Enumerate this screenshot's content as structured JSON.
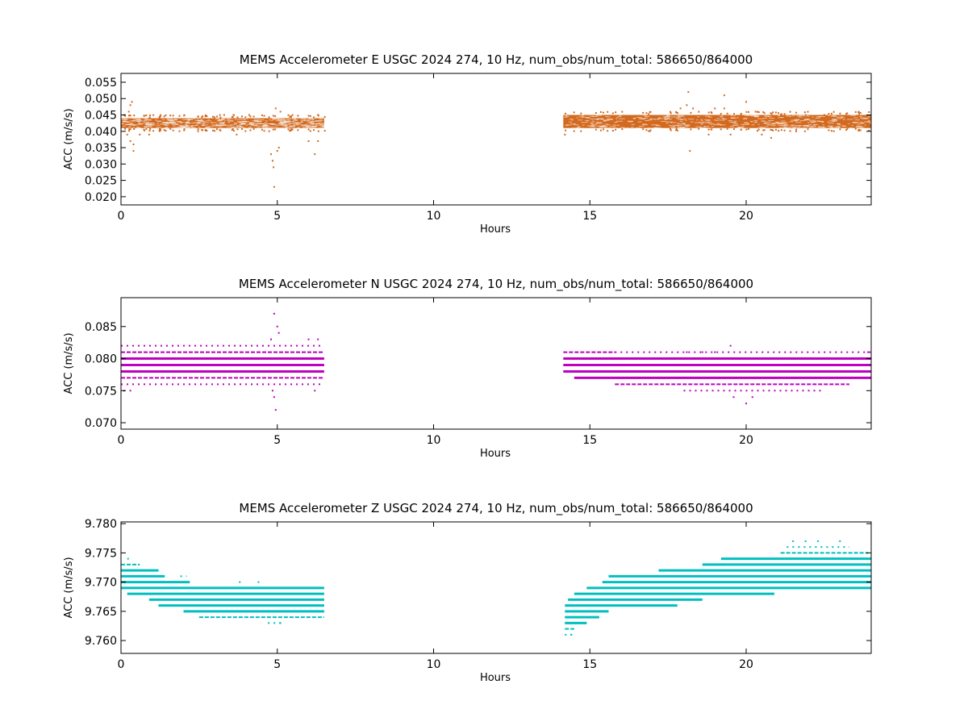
{
  "figure": {
    "background": "#ffffff"
  },
  "chart_data": [
    {
      "type": "scatter",
      "title": "MEMS Accelerometer E USGC 2024 274, 10 Hz, num_obs/num_total: 586650/864000",
      "xlabel": "Hours",
      "ylabel": "ACC (m/s/s)",
      "xlim": [
        0,
        24
      ],
      "ylim": [
        0.0175,
        0.0577
      ],
      "xticks": [
        0,
        5,
        10,
        15,
        20
      ],
      "xtick_labels": [
        "0",
        "5",
        "10",
        "15",
        "20"
      ],
      "yticks": [
        0.02,
        0.025,
        0.03,
        0.035,
        0.04,
        0.045,
        0.05,
        0.055
      ],
      "ytick_labels": [
        "0.020",
        "0.025",
        "0.030",
        "0.035",
        "0.040",
        "0.045",
        "0.050",
        "0.055"
      ],
      "grid": false,
      "color": "#d2691e",
      "segments": [
        {
          "x_start": 0.0,
          "x_end": 6.5,
          "y_low": 0.041,
          "y_high": 0.044
        },
        {
          "x_start": 14.15,
          "x_end": 24.0,
          "y_low": 0.041,
          "y_high": 0.045
        }
      ],
      "outliers": [
        {
          "x": 0.1,
          "y": 0.045
        },
        {
          "x": 0.25,
          "y": 0.046
        },
        {
          "x": 0.3,
          "y": 0.048
        },
        {
          "x": 0.35,
          "y": 0.049
        },
        {
          "x": 0.3,
          "y": 0.037
        },
        {
          "x": 0.4,
          "y": 0.036
        },
        {
          "x": 0.4,
          "y": 0.034
        },
        {
          "x": 0.2,
          "y": 0.039
        },
        {
          "x": 0.6,
          "y": 0.039
        },
        {
          "x": 0.9,
          "y": 0.039
        },
        {
          "x": 3.3,
          "y": 0.045
        },
        {
          "x": 3.6,
          "y": 0.045
        },
        {
          "x": 3.7,
          "y": 0.039
        },
        {
          "x": 4.1,
          "y": 0.045
        },
        {
          "x": 4.8,
          "y": 0.033
        },
        {
          "x": 4.85,
          "y": 0.031
        },
        {
          "x": 4.88,
          "y": 0.029
        },
        {
          "x": 4.9,
          "y": 0.023
        },
        {
          "x": 4.95,
          "y": 0.047
        },
        {
          "x": 5.0,
          "y": 0.034
        },
        {
          "x": 5.05,
          "y": 0.035
        },
        {
          "x": 5.1,
          "y": 0.046
        },
        {
          "x": 6.2,
          "y": 0.033
        },
        {
          "x": 6.0,
          "y": 0.037
        },
        {
          "x": 6.3,
          "y": 0.045
        },
        {
          "x": 6.3,
          "y": 0.037
        },
        {
          "x": 14.2,
          "y": 0.039
        },
        {
          "x": 17.9,
          "y": 0.047
        },
        {
          "x": 18.1,
          "y": 0.048
        },
        {
          "x": 18.15,
          "y": 0.052
        },
        {
          "x": 18.2,
          "y": 0.034
        },
        {
          "x": 18.3,
          "y": 0.047
        },
        {
          "x": 18.8,
          "y": 0.039
        },
        {
          "x": 19.0,
          "y": 0.047
        },
        {
          "x": 19.3,
          "y": 0.051
        },
        {
          "x": 19.3,
          "y": 0.047
        },
        {
          "x": 19.5,
          "y": 0.039
        },
        {
          "x": 20.0,
          "y": 0.049
        },
        {
          "x": 20.3,
          "y": 0.046
        },
        {
          "x": 20.5,
          "y": 0.039
        },
        {
          "x": 20.8,
          "y": 0.038
        },
        {
          "x": 21.1,
          "y": 0.045
        },
        {
          "x": 21.6,
          "y": 0.04
        },
        {
          "x": 21.9,
          "y": 0.045
        },
        {
          "x": 22.5,
          "y": 0.045
        }
      ]
    },
    {
      "type": "scatter",
      "title": "MEMS Accelerometer N USGC 2024 274, 10 Hz, num_obs/num_total: 586650/864000",
      "xlabel": "Hours",
      "ylabel": "ACC (m/s/s)",
      "xlim": [
        0,
        24
      ],
      "ylim": [
        0.069,
        0.0895
      ],
      "xticks": [
        0,
        5,
        10,
        15,
        20
      ],
      "xtick_labels": [
        "0",
        "5",
        "10",
        "15",
        "20"
      ],
      "yticks": [
        0.07,
        0.075,
        0.08,
        0.085
      ],
      "ytick_labels": [
        "0.070",
        "0.075",
        "0.080",
        "0.085"
      ],
      "grid": false,
      "color": "#bf00bf",
      "levels": [
        {
          "y": 0.082,
          "x_start": 0.0,
          "x_end": 6.5,
          "density": "sparse"
        },
        {
          "y": 0.081,
          "x_start": 0.0,
          "x_end": 6.5,
          "density": "medium"
        },
        {
          "y": 0.08,
          "x_start": 0.0,
          "x_end": 6.5,
          "density": "dense"
        },
        {
          "y": 0.079,
          "x_start": 0.0,
          "x_end": 6.5,
          "density": "dense"
        },
        {
          "y": 0.078,
          "x_start": 0.0,
          "x_end": 6.5,
          "density": "dense"
        },
        {
          "y": 0.077,
          "x_start": 0.0,
          "x_end": 6.5,
          "density": "medium"
        },
        {
          "y": 0.076,
          "x_start": 0.0,
          "x_end": 6.5,
          "density": "sparse"
        },
        {
          "y": 0.081,
          "x_start": 14.15,
          "x_end": 15.8,
          "density": "medium"
        },
        {
          "y": 0.081,
          "x_start": 15.8,
          "x_end": 24.0,
          "density": "sparse"
        },
        {
          "y": 0.08,
          "x_start": 14.15,
          "x_end": 24.0,
          "density": "dense"
        },
        {
          "y": 0.079,
          "x_start": 14.15,
          "x_end": 24.0,
          "density": "dense"
        },
        {
          "y": 0.078,
          "x_start": 14.15,
          "x_end": 24.0,
          "density": "dense"
        },
        {
          "y": 0.077,
          "x_start": 14.5,
          "x_end": 24.0,
          "density": "dense"
        },
        {
          "y": 0.076,
          "x_start": 15.8,
          "x_end": 23.3,
          "density": "medium"
        },
        {
          "y": 0.075,
          "x_start": 18.0,
          "x_end": 22.5,
          "density": "sparse"
        }
      ],
      "outliers": [
        {
          "x": 4.9,
          "y": 0.087
        },
        {
          "x": 5.0,
          "y": 0.085
        },
        {
          "x": 5.05,
          "y": 0.084
        },
        {
          "x": 4.8,
          "y": 0.083
        },
        {
          "x": 4.9,
          "y": 0.074
        },
        {
          "x": 4.95,
          "y": 0.072
        },
        {
          "x": 4.85,
          "y": 0.075
        },
        {
          "x": 6.3,
          "y": 0.083
        },
        {
          "x": 6.0,
          "y": 0.083
        },
        {
          "x": 6.2,
          "y": 0.075
        },
        {
          "x": 0.1,
          "y": 0.075
        },
        {
          "x": 0.3,
          "y": 0.075
        },
        {
          "x": 18.1,
          "y": 0.081
        },
        {
          "x": 18.6,
          "y": 0.081
        },
        {
          "x": 19.0,
          "y": 0.081
        },
        {
          "x": 19.5,
          "y": 0.082
        },
        {
          "x": 19.6,
          "y": 0.074
        },
        {
          "x": 20.0,
          "y": 0.073
        },
        {
          "x": 20.2,
          "y": 0.074
        },
        {
          "x": 23.9,
          "y": 0.081
        }
      ]
    },
    {
      "type": "scatter",
      "title": "MEMS Accelerometer Z USGC 2024 274, 10 Hz, num_obs/num_total: 586650/864000",
      "xlabel": "Hours",
      "ylabel": "ACC (m/s/s)",
      "xlim": [
        0,
        24
      ],
      "ylim": [
        9.7578,
        9.7803
      ],
      "xticks": [
        0,
        5,
        10,
        15,
        20
      ],
      "xtick_labels": [
        "0",
        "5",
        "10",
        "15",
        "20"
      ],
      "yticks": [
        9.76,
        9.765,
        9.77,
        9.775,
        9.78
      ],
      "ytick_labels": [
        "9.760",
        "9.765",
        "9.770",
        "9.775",
        "9.780"
      ],
      "grid": false,
      "color": "#00bfbf",
      "levels": [
        {
          "y": 9.774,
          "x_start": 0.2,
          "x_end": 0.3,
          "density": "sparse"
        },
        {
          "y": 9.773,
          "x_start": 0.0,
          "x_end": 0.6,
          "density": "medium"
        },
        {
          "y": 9.772,
          "x_start": 0.0,
          "x_end": 1.2,
          "density": "dense"
        },
        {
          "y": 9.771,
          "x_start": 0.0,
          "x_end": 1.4,
          "density": "dense"
        },
        {
          "y": 9.771,
          "x_start": 1.9,
          "x_end": 2.1,
          "density": "sparse"
        },
        {
          "y": 9.77,
          "x_start": 0.0,
          "x_end": 2.2,
          "density": "dense"
        },
        {
          "y": 9.769,
          "x_start": 0.0,
          "x_end": 6.5,
          "density": "dense"
        },
        {
          "y": 9.768,
          "x_start": 0.2,
          "x_end": 6.5,
          "density": "dense"
        },
        {
          "y": 9.767,
          "x_start": 0.9,
          "x_end": 6.5,
          "density": "dense"
        },
        {
          "y": 9.766,
          "x_start": 1.2,
          "x_end": 6.5,
          "density": "dense"
        },
        {
          "y": 9.765,
          "x_start": 2.0,
          "x_end": 6.5,
          "density": "dense"
        },
        {
          "y": 9.764,
          "x_start": 2.5,
          "x_end": 6.5,
          "density": "medium"
        },
        {
          "y": 9.763,
          "x_start": 4.7,
          "x_end": 5.1,
          "density": "sparse"
        },
        {
          "y": 9.761,
          "x_start": 14.2,
          "x_end": 14.5,
          "density": "sparse"
        },
        {
          "y": 9.762,
          "x_start": 14.2,
          "x_end": 14.5,
          "density": "medium"
        },
        {
          "y": 9.763,
          "x_start": 14.2,
          "x_end": 14.9,
          "density": "dense"
        },
        {
          "y": 9.764,
          "x_start": 14.2,
          "x_end": 15.3,
          "density": "dense"
        },
        {
          "y": 9.765,
          "x_start": 14.2,
          "x_end": 15.6,
          "density": "dense"
        },
        {
          "y": 9.766,
          "x_start": 14.2,
          "x_end": 17.8,
          "density": "dense"
        },
        {
          "y": 9.767,
          "x_start": 14.3,
          "x_end": 18.6,
          "density": "dense"
        },
        {
          "y": 9.768,
          "x_start": 14.5,
          "x_end": 20.9,
          "density": "dense"
        },
        {
          "y": 9.769,
          "x_start": 14.9,
          "x_end": 24.0,
          "density": "dense"
        },
        {
          "y": 9.77,
          "x_start": 15.4,
          "x_end": 24.0,
          "density": "dense"
        },
        {
          "y": 9.771,
          "x_start": 15.6,
          "x_end": 24.0,
          "density": "dense"
        },
        {
          "y": 9.772,
          "x_start": 17.2,
          "x_end": 24.0,
          "density": "dense"
        },
        {
          "y": 9.773,
          "x_start": 18.6,
          "x_end": 24.0,
          "density": "dense"
        },
        {
          "y": 9.774,
          "x_start": 19.2,
          "x_end": 24.0,
          "density": "dense"
        },
        {
          "y": 9.775,
          "x_start": 21.1,
          "x_end": 23.9,
          "density": "medium"
        },
        {
          "y": 9.776,
          "x_start": 21.3,
          "x_end": 23.3,
          "density": "sparse"
        }
      ],
      "outliers": [
        {
          "x": 3.8,
          "y": 9.77
        },
        {
          "x": 4.4,
          "y": 9.77
        },
        {
          "x": 5.1,
          "y": 9.763
        },
        {
          "x": 14.4,
          "y": 9.761
        },
        {
          "x": 21.5,
          "y": 9.777
        },
        {
          "x": 21.9,
          "y": 9.777
        },
        {
          "x": 22.3,
          "y": 9.777
        },
        {
          "x": 23.0,
          "y": 9.777
        },
        {
          "x": 23.5,
          "y": 9.775
        }
      ]
    }
  ]
}
